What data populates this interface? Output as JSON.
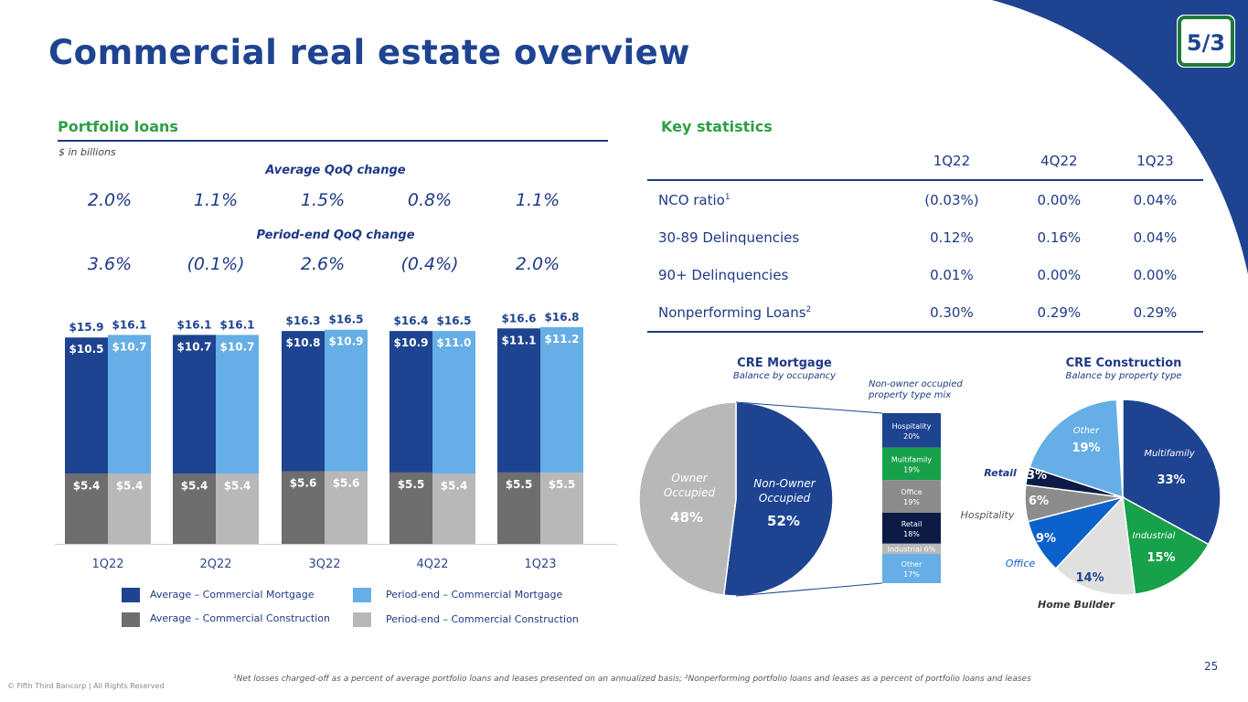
{
  "title": "Commercial real estate overview",
  "colors": {
    "navy": "#1e4391",
    "green": "#2e9e45",
    "light_blue": "#65aee6",
    "dark_gray": "#6e6e6e",
    "light_gray": "#b8b8b8"
  },
  "portfolio": {
    "heading": "Portfolio loans",
    "units": "$ in billions",
    "avg_change_label": "Average QoQ change",
    "avg_changes": [
      "2.0%",
      "1.1%",
      "1.5%",
      "0.8%",
      "1.1%"
    ],
    "pe_change_label": "Period-end QoQ change",
    "pe_changes": [
      "3.6%",
      "(0.1%)",
      "2.6%",
      "(0.4%)",
      "2.0%"
    ],
    "legend": [
      "Average – Commercial Mortgage",
      "Period-end – Commercial Mortgage",
      "Average – Commercial Construction",
      "Period-end – Commercial Construction"
    ]
  },
  "key_stats": {
    "heading": "Key statistics",
    "columns": [
      "1Q22",
      "4Q22",
      "1Q23"
    ],
    "rows": [
      {
        "label": "NCO ratio",
        "sup": "1",
        "values": [
          "(0.03%)",
          "0.00%",
          "0.04%"
        ]
      },
      {
        "label": "30-89 Delinquencies",
        "sup": "",
        "values": [
          "0.12%",
          "0.16%",
          "0.04%"
        ]
      },
      {
        "label": "90+ Delinquencies",
        "sup": "",
        "values": [
          "0.01%",
          "0.00%",
          "0.00%"
        ]
      },
      {
        "label": "Nonperforming Loans",
        "sup": "2",
        "values": [
          "0.30%",
          "0.29%",
          "0.29%"
        ]
      }
    ]
  },
  "chart_data": [
    {
      "type": "bar",
      "title": "Portfolio loans",
      "units": "$ in billions",
      "categories": [
        "1Q22",
        "2Q22",
        "3Q22",
        "4Q22",
        "1Q23"
      ],
      "stacked": true,
      "series": [
        {
          "name": "Average – Commercial Mortgage",
          "values": [
            10.5,
            10.7,
            10.8,
            10.9,
            11.1
          ],
          "labels": [
            "$10.5",
            "$10.7",
            "$10.8",
            "$10.9",
            "$11.1"
          ]
        },
        {
          "name": "Average – Commercial Construction",
          "values": [
            5.4,
            5.4,
            5.6,
            5.5,
            5.5
          ],
          "labels": [
            "$5.4",
            "$5.4",
            "$5.6",
            "$5.5",
            "$5.5"
          ]
        },
        {
          "name": "Period-end – Commercial Mortgage",
          "values": [
            10.7,
            10.7,
            10.9,
            11.0,
            11.2
          ],
          "labels": [
            "$10.7",
            "$10.7",
            "$10.9",
            "$11.0",
            "$11.2"
          ]
        },
        {
          "name": "Period-end – Commercial Construction",
          "values": [
            5.4,
            5.4,
            5.6,
            5.4,
            5.5
          ],
          "labels": [
            "$5.4",
            "$5.4",
            "$5.6",
            "$5.4",
            "$5.5"
          ]
        }
      ],
      "totals_average": [
        "$15.9",
        "$16.1",
        "$16.3",
        "$16.4",
        "$16.6"
      ],
      "totals_period_end": [
        "$16.1",
        "$16.1",
        "$16.5",
        "$16.5",
        "$16.8"
      ]
    },
    {
      "type": "pie",
      "title": "CRE Mortgage",
      "subtitle": "Balance by occupancy",
      "slices": [
        {
          "name": "Non-Owner Occupied",
          "value": 52,
          "label": "52%"
        },
        {
          "name": "Owner Occupied",
          "value": 48,
          "label": "48%"
        }
      ],
      "breakdown_title": "Non-owner occupied property type mix",
      "breakdown": [
        {
          "name": "Hospitality",
          "value": 20,
          "label": "20%",
          "color": "#1e4391"
        },
        {
          "name": "Multifamily",
          "value": 19,
          "label": "19%",
          "color": "#17a14a"
        },
        {
          "name": "Office",
          "value": 19,
          "label": "19%",
          "color": "#8c8c8c"
        },
        {
          "name": "Retail",
          "value": 18,
          "label": "18%",
          "color": "#0c1b45"
        },
        {
          "name": "Industrial",
          "value": 6,
          "label": "Industrial 6%",
          "color": "#b8b8b8"
        },
        {
          "name": "Other",
          "value": 17,
          "label": "17%",
          "color": "#65aee6"
        }
      ]
    },
    {
      "type": "pie",
      "title": "CRE Construction",
      "subtitle": "Balance by property type",
      "slices": [
        {
          "name": "Multifamily",
          "value": 33,
          "label": "33%",
          "color": "#1e4391"
        },
        {
          "name": "Industrial",
          "value": 15,
          "label": "15%",
          "color": "#17a14a"
        },
        {
          "name": "Home Builder",
          "value": 14,
          "label": "14%",
          "color": "#e0e0e0"
        },
        {
          "name": "Office",
          "value": 9,
          "label": "9%",
          "color": "#0a61c9"
        },
        {
          "name": "Hospitality",
          "value": 6,
          "label": "6%",
          "color": "#8c8c8c"
        },
        {
          "name": "Retail",
          "value": 3,
          "label": "3%",
          "color": "#0c1b45"
        },
        {
          "name": "Other",
          "value": 19,
          "label": "19%",
          "color": "#65aee6"
        }
      ]
    }
  ],
  "footnote": "¹Net losses charged-off as a percent of average portfolio loans and leases presented on an annualized basis; ²Nonperforming portfolio loans and leases as a percent of portfolio loans and leases",
  "copyright": "© Fifth Third Bancorp | All Rights Reserved",
  "page_number": "25",
  "logo_text": "5/3"
}
